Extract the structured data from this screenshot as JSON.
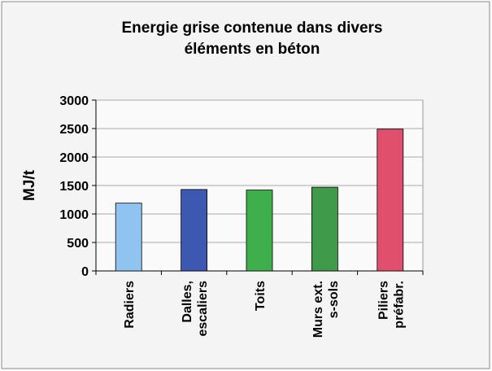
{
  "chart_data": {
    "type": "bar",
    "title": [
      "Energie grise contenue dans divers",
      "éléments en béton"
    ],
    "y_label": "MJ/t",
    "categories": [
      [
        "Radiers"
      ],
      [
        "Dalles,",
        "escaliers"
      ],
      [
        "Toits"
      ],
      [
        "Murs ext.",
        "s-sols"
      ],
      [
        "Piliers",
        "préfabr."
      ]
    ],
    "values": [
      1190,
      1430,
      1420,
      1470,
      2490
    ],
    "colors": [
      "#90c4f0",
      "#3d58b0",
      "#3fae4c",
      "#3f9a4a",
      "#e0506c"
    ],
    "ylim": [
      0,
      3000
    ],
    "yticks": [
      0,
      500,
      1000,
      1500,
      2000,
      2500,
      3000
    ],
    "grid": true
  }
}
